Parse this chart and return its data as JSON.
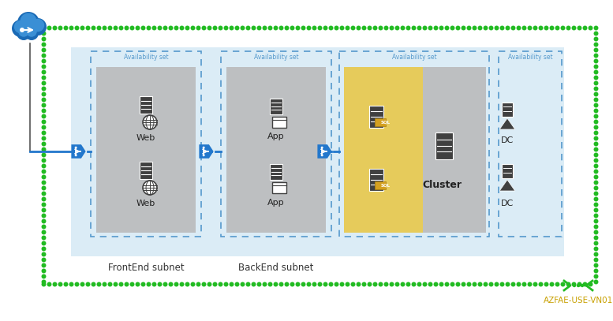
{
  "bg": "#ffffff",
  "outer_dot_color": "#22bb22",
  "subnet_fill": "#d8eaf5",
  "subnet_border": "#a8cce0",
  "avail_border": "#5599cc",
  "gray_box": "#b8b8b8",
  "cluster_yellow": "#e8c84a",
  "cluster_yellow_dark": "#d4b030",
  "blue_arrow": "#2277cc",
  "line_color": "#555555",
  "cloud_line": "#888888",
  "vn_label": "AZFAE-USE-VN01",
  "vn_label_color": "#c8a000",
  "vn_icon_color": "#22bb22",
  "avail_text_color": "#5599cc",
  "avail_label": "Availability set",
  "frontend_label": "FrontEnd subnet",
  "backend_label": "BackEnd subnet",
  "web_label": "Web",
  "app_label": "App",
  "cluster_label": "Cluster",
  "dc_label": "DC",
  "icon_dark": "#404040",
  "icon_mid": "#606060",
  "icon_light": "#888888",
  "sql_badge": "#d4a020",
  "white": "#ffffff"
}
